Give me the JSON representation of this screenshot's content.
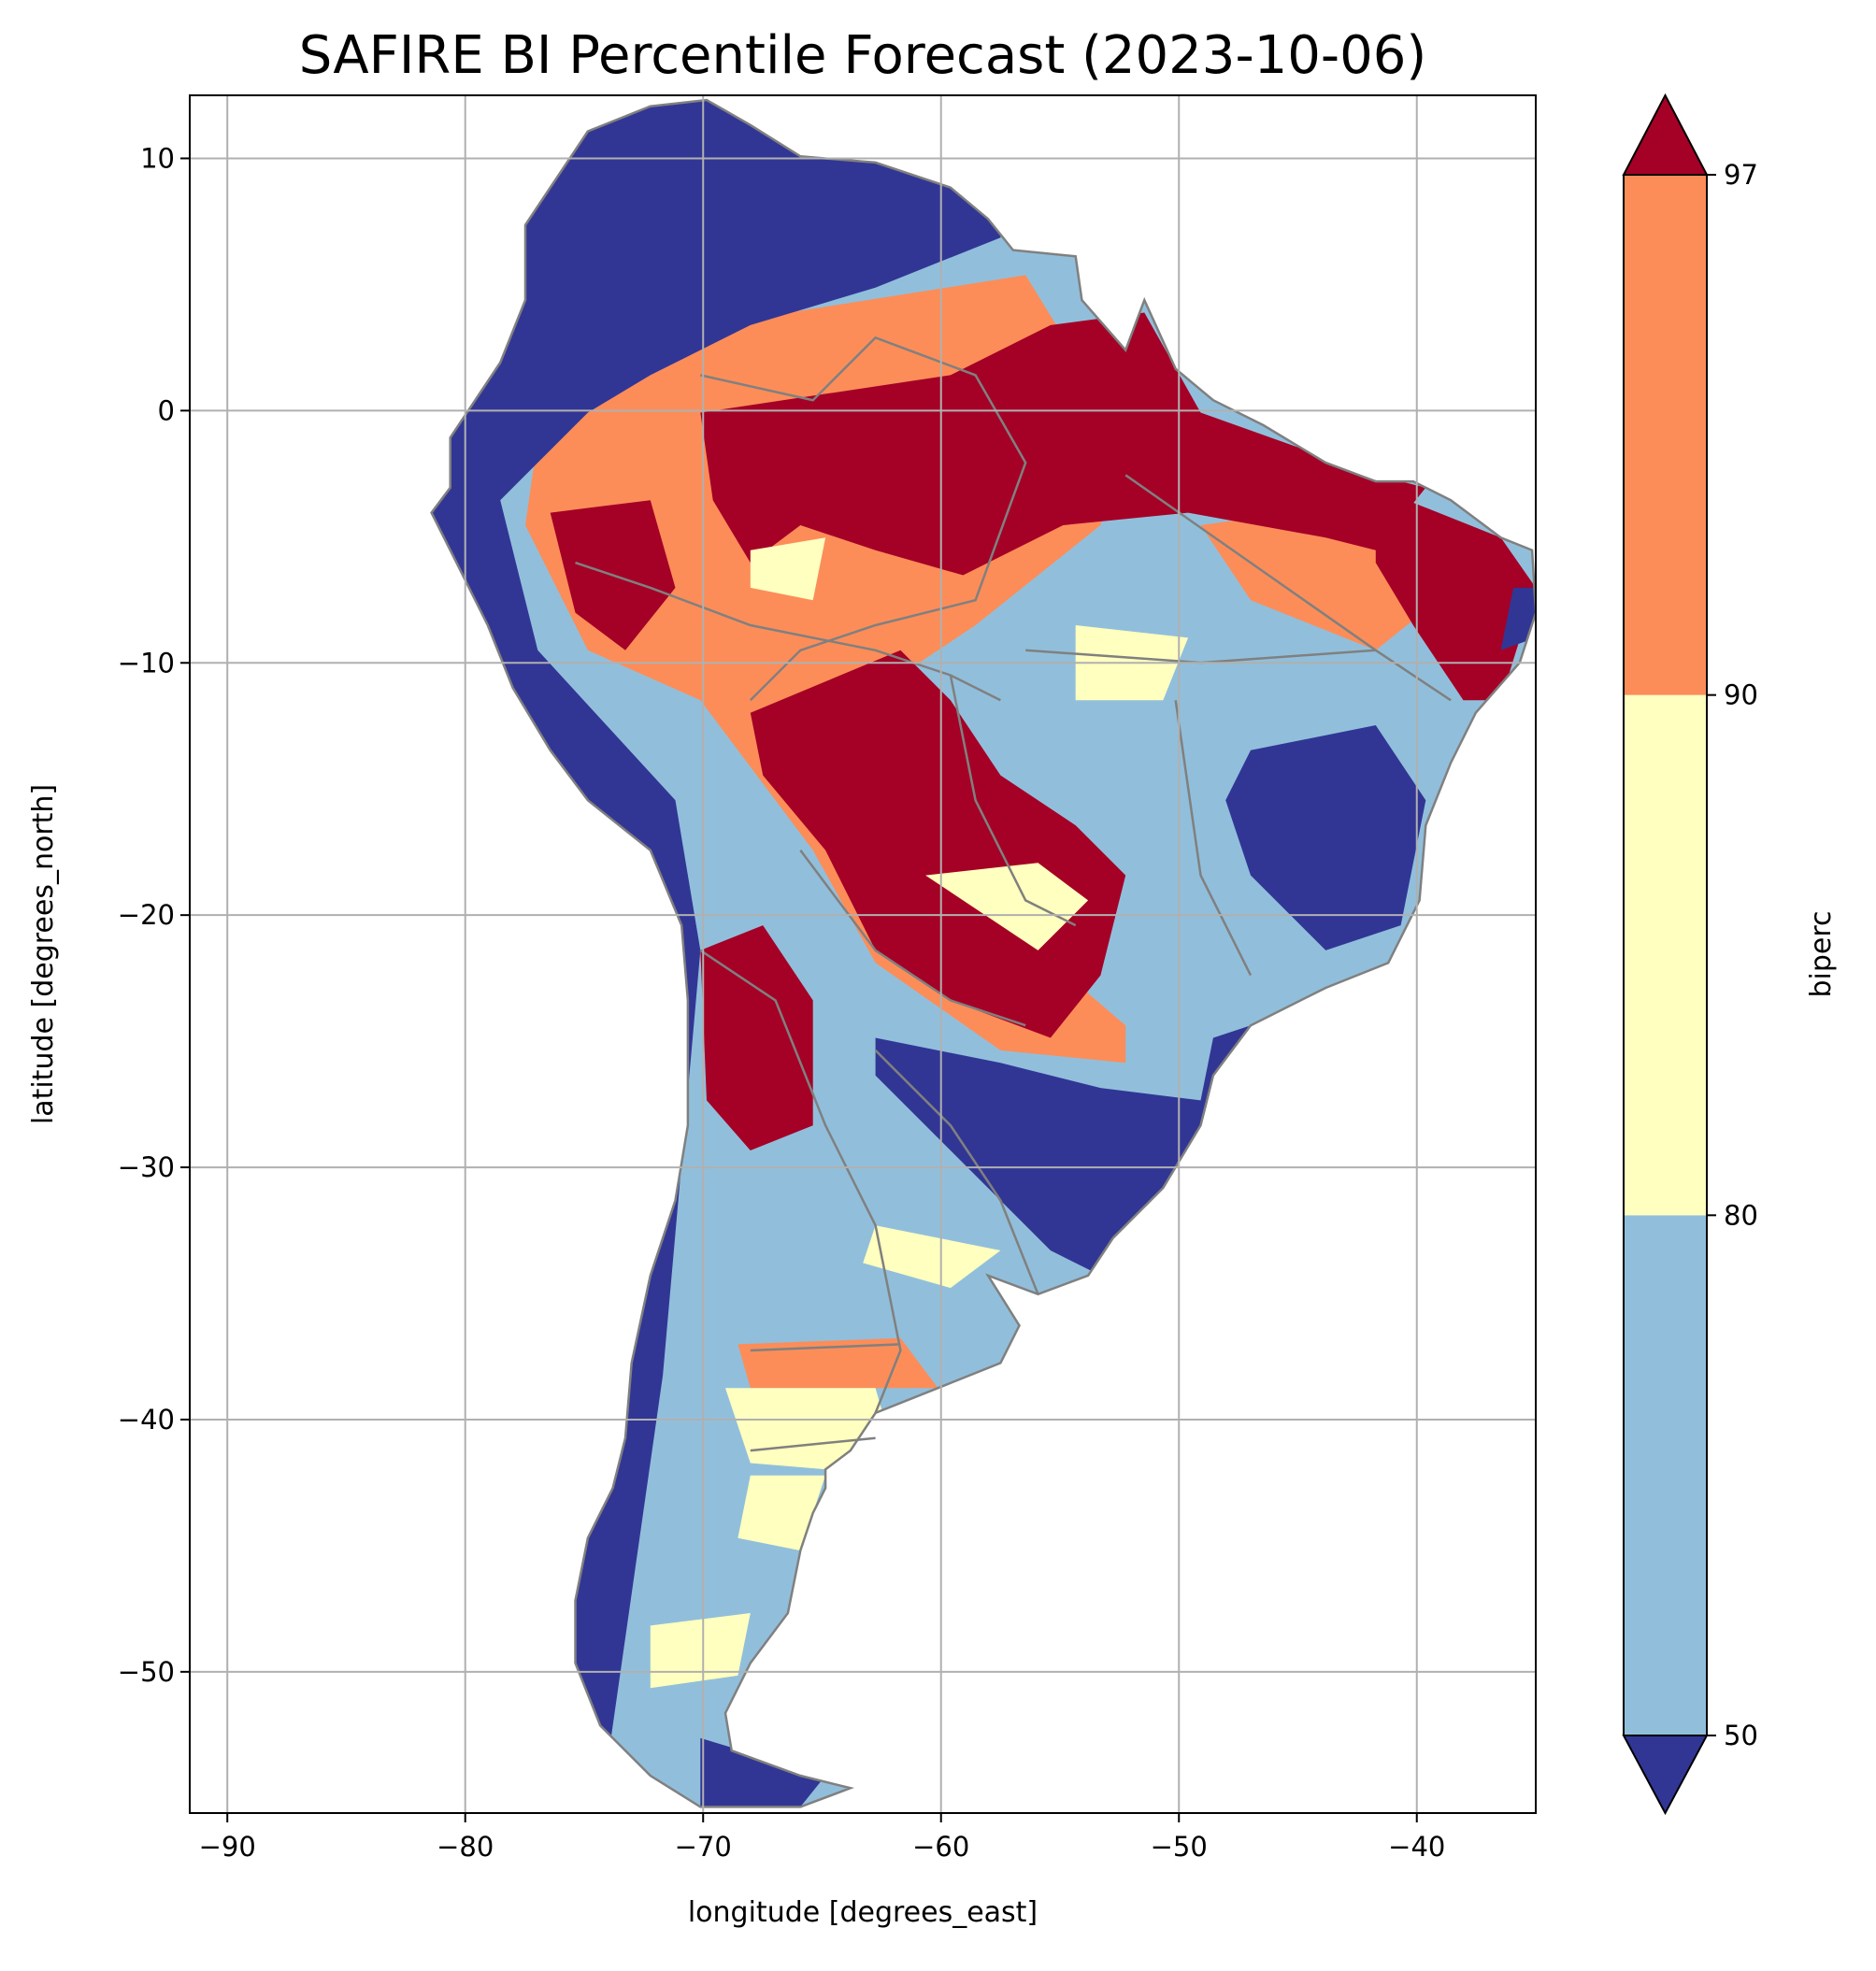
{
  "chart_data": {
    "type": "heatmap",
    "title": "SAFIRE BI Percentile Forecast (2023-10-06)",
    "xlabel": "longitude [degrees_east]",
    "ylabel": "latitude [degrees_north]",
    "xlim": [
      -91.58,
      -35.0
    ],
    "ylim": [
      -55.6,
      12.5
    ],
    "xticks": [
      -90,
      -80,
      -70,
      -60,
      -50,
      -40
    ],
    "xtick_labels": [
      "−90",
      "−80",
      "−70",
      "−60",
      "−50",
      "−40"
    ],
    "yticks": [
      10,
      0,
      -10,
      -20,
      -30,
      -40,
      -50
    ],
    "ytick_labels": [
      "10",
      "0",
      "−10",
      "−20",
      "−30",
      "−40",
      "−50"
    ],
    "grid": true,
    "colorbar": {
      "label": "biperc",
      "levels": [
        50,
        80,
        90,
        97
      ],
      "level_labels": [
        "50",
        "80",
        "90",
        "97"
      ],
      "extend": "both",
      "colors": {
        "below_50": "#313695",
        "50_80": "#91bfdb",
        "80_90": "#ffffbf",
        "90_97": "#fc8d59",
        "above_97": "#a50026"
      }
    },
    "region": "South America",
    "borders_color": "#808080"
  }
}
